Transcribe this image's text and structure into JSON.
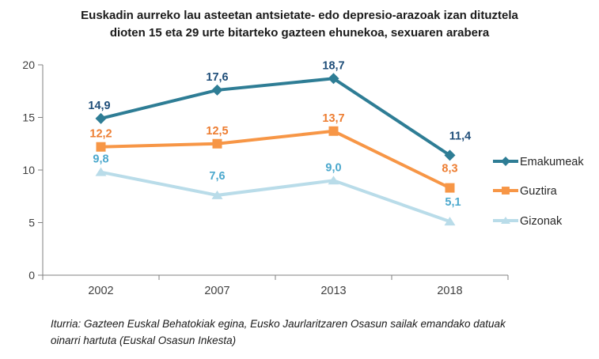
{
  "title": {
    "lines": [
      "Euskadin aurreko lau asteetan antsietate- edo depresio-arazoak izan dituztela",
      "dioten 15 eta 29 urte bitarteko gazteen ehunekoa, sexuaren arabera"
    ]
  },
  "source": {
    "lines": [
      "Iturria: Gazteen Euskal Behatokiak egina, Eusko Jaurlaritzaren Osasun sailak emandako datuak",
      "oinarri hartuta (Euskal Osasun Inkesta)"
    ]
  },
  "chart_data": {
    "type": "line",
    "title": "Euskadin aurreko lau asteetan antsietate- edo depresio-arazoak izan dituztela dioten 15 eta 29 urte bitarteko gazteen ehunekoa, sexuaren arabera",
    "xlabel": "",
    "ylabel": "",
    "categories": [
      "2002",
      "2007",
      "2013",
      "2018"
    ],
    "series": [
      {
        "name": "Emakumeak",
        "values": [
          14.9,
          17.6,
          18.7,
          11.4
        ],
        "labels": [
          "14,9",
          "17,6",
          "18,7",
          "11,4"
        ],
        "color": "#2E7D95",
        "label_color": "#1F4E79",
        "marker": "diamond"
      },
      {
        "name": "Guztira",
        "values": [
          12.2,
          12.5,
          13.7,
          8.3
        ],
        "labels": [
          "12,2",
          "12,5",
          "13,7",
          "8,3"
        ],
        "color": "#F79646",
        "label_color": "#ED7D31",
        "marker": "square"
      },
      {
        "name": "Gizonak",
        "values": [
          9.8,
          7.6,
          9.0,
          5.1
        ],
        "labels": [
          "9,8",
          "7,6",
          "9,0",
          "5,1"
        ],
        "color": "#B9DCE9",
        "label_color": "#4BA8CD",
        "marker": "triangle"
      }
    ],
    "y_ticks": [
      "0",
      "5",
      "10",
      "15",
      "20"
    ],
    "ylim": [
      0,
      20
    ],
    "grid": false,
    "legend_position": "right",
    "axis_color": "#808080",
    "tick_label_color": "#404040",
    "legend_text_color": "#262626"
  }
}
